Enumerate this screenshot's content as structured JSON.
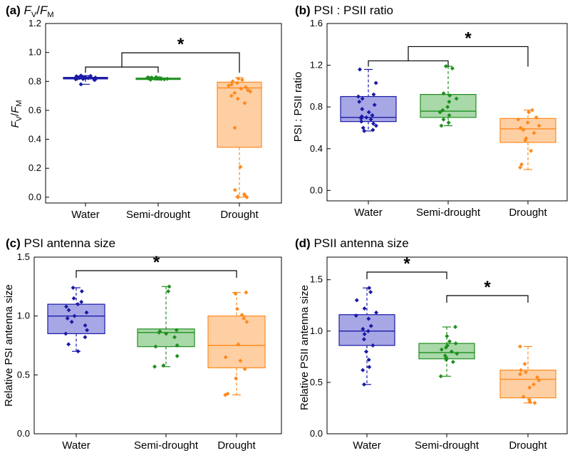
{
  "figure": {
    "categories": [
      "Water",
      "Semi-drought",
      "Drought"
    ],
    "colors": {
      "water": "#1a1aa6",
      "water_fill": "#a7a7e6",
      "semi": "#1f8f1f",
      "semi_fill": "#a9d8a9",
      "drought": "#ff8a1e",
      "drought_fill": "#ffcfa4"
    }
  },
  "chart_data": [
    {
      "type": "box",
      "panel_label": "(a)",
      "title_main": "F",
      "title_sub1": "V",
      "title_slash": "/",
      "title_main2": "F",
      "title_sub2": "M",
      "ylabel_main": "F",
      "ylabel_sub1": "V",
      "ylabel_slash": "/",
      "ylabel_main2": "F",
      "ylabel_sub2": "M",
      "ylim": [
        -0.04,
        1.2
      ],
      "yticks": [
        0.0,
        0.2,
        0.4,
        0.6,
        0.8,
        1.0,
        1.2
      ],
      "tick_labels": [
        "0.0",
        "0.2",
        "0.4",
        "0.6",
        "0.8",
        "1.0",
        "1.2"
      ],
      "series": [
        {
          "name": "Water",
          "q1": 0.817,
          "median": 0.823,
          "q3": 0.828,
          "wlo": 0.78,
          "whi": 0.84,
          "points": [
            0.81,
            0.812,
            0.815,
            0.817,
            0.819,
            0.82,
            0.821,
            0.822,
            0.823,
            0.824,
            0.825,
            0.826,
            0.827,
            0.828,
            0.83,
            0.832,
            0.835,
            0.838,
            0.84,
            0.78
          ]
        },
        {
          "name": "Semi-drought",
          "q1": 0.817,
          "median": 0.82,
          "q3": 0.823,
          "wlo": 0.81,
          "whi": 0.83,
          "points": [
            0.812,
            0.815,
            0.817,
            0.818,
            0.819,
            0.82,
            0.821,
            0.822,
            0.823,
            0.824,
            0.826,
            0.828,
            0.83
          ]
        },
        {
          "name": "Drought",
          "q1": 0.345,
          "median": 0.755,
          "q3": 0.795,
          "wlo": 0.0,
          "whi": 0.825,
          "points": [
            0.82,
            0.81,
            0.8,
            0.79,
            0.78,
            0.77,
            0.76,
            0.75,
            0.74,
            0.73,
            0.72,
            0.7,
            0.68,
            0.65,
            0.48,
            0.21,
            0.05,
            0.02,
            0.01,
            0.0,
            0.0,
            0.005
          ]
        }
      ],
      "brackets": [
        {
          "type": "group",
          "left": 0,
          "right": 1,
          "target": 2,
          "label": "*"
        }
      ]
    },
    {
      "type": "box",
      "panel_label": "(b)",
      "title_text": "PSI : PSII ratio",
      "ylabel": "PSI : PSII ratio",
      "ylim": [
        -0.1,
        1.6
      ],
      "yticks": [
        0.0,
        0.4,
        0.8,
        1.2,
        1.6
      ],
      "tick_labels": [
        "0.0",
        "0.4",
        "0.8",
        "1.2",
        "1.6"
      ],
      "series": [
        {
          "name": "Water",
          "q1": 0.66,
          "median": 0.7,
          "q3": 0.9,
          "wlo": 0.57,
          "whi": 1.16,
          "points": [
            1.16,
            1.03,
            0.92,
            0.9,
            0.88,
            0.85,
            0.82,
            0.78,
            0.75,
            0.72,
            0.71,
            0.7,
            0.69,
            0.68,
            0.66,
            0.64,
            0.62,
            0.6,
            0.58,
            0.57
          ]
        },
        {
          "name": "Semi-drought",
          "q1": 0.7,
          "median": 0.76,
          "q3": 0.92,
          "wlo": 0.62,
          "whi": 1.19,
          "points": [
            1.19,
            1.17,
            0.93,
            0.91,
            0.88,
            0.85,
            0.8,
            0.77,
            0.75,
            0.72,
            0.68,
            0.65,
            0.62
          ]
        },
        {
          "name": "Drought",
          "q1": 0.46,
          "median": 0.59,
          "q3": 0.69,
          "wlo": 0.2,
          "whi": 0.77,
          "points": [
            0.77,
            0.75,
            0.7,
            0.68,
            0.65,
            0.62,
            0.6,
            0.58,
            0.55,
            0.5,
            0.48,
            0.38,
            0.25,
            0.22
          ]
        }
      ],
      "brackets": [
        {
          "type": "group",
          "left": 0,
          "right": 1,
          "target": 2,
          "label": "*"
        }
      ]
    },
    {
      "type": "box",
      "panel_label": "(c)",
      "title_text": "PSI antenna size",
      "ylabel": "Relative PSI antenna size",
      "ylim": [
        0.0,
        1.5
      ],
      "yticks": [
        0.0,
        0.5,
        1.0,
        1.5
      ],
      "tick_labels": [
        "0.0",
        "0.5",
        "1.0",
        "1.5"
      ],
      "series": [
        {
          "name": "Water",
          "q1": 0.85,
          "median": 1.0,
          "q3": 1.1,
          "wlo": 0.7,
          "whi": 1.24,
          "points": [
            1.24,
            1.21,
            1.15,
            1.12,
            1.1,
            1.08,
            1.05,
            1.03,
            1.0,
            0.98,
            0.95,
            0.92,
            0.88,
            0.85,
            0.82,
            0.76,
            0.7
          ]
        },
        {
          "name": "Semi-drought",
          "q1": 0.74,
          "median": 0.86,
          "q3": 0.89,
          "wlo": 0.57,
          "whi": 1.25,
          "points": [
            1.25,
            1.21,
            0.88,
            0.87,
            0.86,
            0.85,
            0.82,
            0.75,
            0.74,
            0.66,
            0.58,
            0.57
          ]
        },
        {
          "name": "Drought",
          "q1": 0.56,
          "median": 0.75,
          "q3": 1.0,
          "wlo": 0.33,
          "whi": 1.2,
          "points": [
            1.2,
            1.19,
            1.06,
            1.01,
            0.98,
            0.95,
            0.76,
            0.65,
            0.62,
            0.55,
            0.47,
            0.34,
            0.33
          ]
        }
      ],
      "brackets": [
        {
          "type": "simple",
          "from": 0,
          "to": 2,
          "label": "*"
        }
      ]
    },
    {
      "type": "box",
      "panel_label": "(d)",
      "title_text": "PSII antenna size",
      "ylabel": "Relative PSII antenna size",
      "ylim": [
        0.0,
        1.72
      ],
      "yticks": [
        0.0,
        0.5,
        1.0,
        1.5
      ],
      "tick_labels": [
        "0.0",
        "0.5",
        "1.0",
        "1.5"
      ],
      "series": [
        {
          "name": "Water",
          "q1": 0.86,
          "median": 1.0,
          "q3": 1.16,
          "wlo": 0.48,
          "whi": 1.42,
          "points": [
            1.42,
            1.38,
            1.3,
            1.22,
            1.18,
            1.15,
            1.12,
            1.05,
            1.02,
            1.0,
            0.97,
            0.92,
            0.86,
            0.8,
            0.72,
            0.65,
            0.62,
            0.48
          ]
        },
        {
          "name": "Semi-drought",
          "q1": 0.73,
          "median": 0.79,
          "q3": 0.88,
          "wlo": 0.56,
          "whi": 1.04,
          "points": [
            1.04,
            0.95,
            0.9,
            0.88,
            0.86,
            0.84,
            0.82,
            0.8,
            0.78,
            0.76,
            0.74,
            0.72,
            0.7,
            0.56
          ]
        },
        {
          "name": "Drought",
          "q1": 0.35,
          "median": 0.53,
          "q3": 0.62,
          "wlo": 0.3,
          "whi": 0.85,
          "points": [
            0.85,
            0.68,
            0.62,
            0.6,
            0.58,
            0.55,
            0.52,
            0.48,
            0.45,
            0.36,
            0.33,
            0.31,
            0.3
          ]
        }
      ],
      "brackets": [
        {
          "type": "simple",
          "from": 0,
          "to": 1,
          "label": "*"
        },
        {
          "type": "simple",
          "from": 1,
          "to": 2,
          "label": "*"
        }
      ]
    }
  ]
}
